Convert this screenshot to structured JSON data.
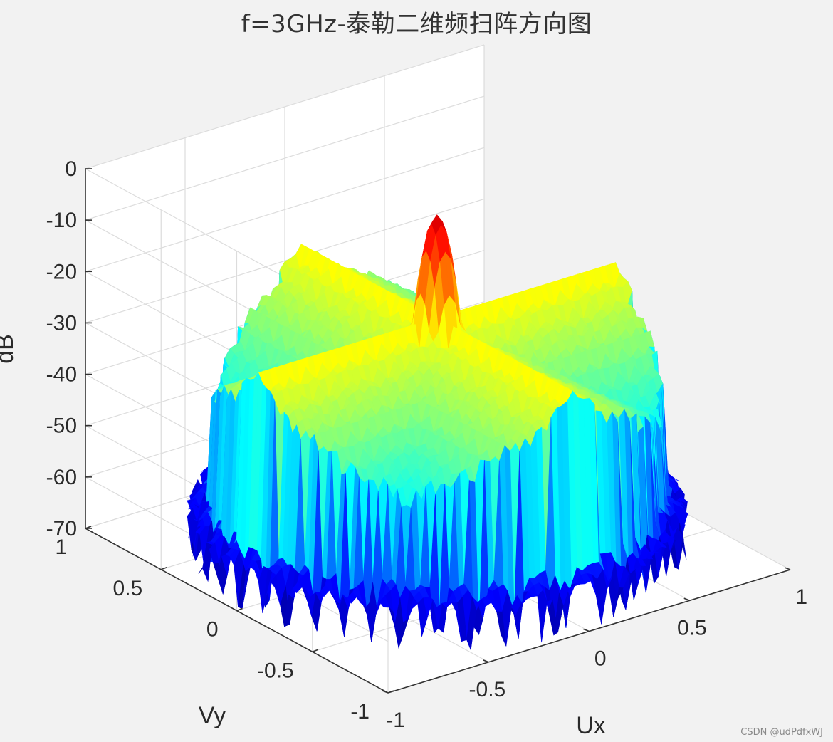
{
  "chart_data": {
    "type": "surface",
    "title": "f=3GHz-泰勒二维频扫阵方向图",
    "xlabel": "Ux",
    "ylabel": "Vy",
    "zlabel": "dB",
    "x_ticks": [
      "-1",
      "-0.5",
      "0",
      "0.5",
      "1"
    ],
    "y_ticks": [
      "-1",
      "-0.5",
      "0",
      "0.5",
      "1"
    ],
    "z_ticks": [
      "0",
      "-10",
      "-20",
      "-30",
      "-40",
      "-50",
      "-60",
      "-70"
    ],
    "xlim": [
      -1,
      1
    ],
    "ylim": [
      -1,
      1
    ],
    "zlim": [
      -70,
      0
    ],
    "grid": true,
    "colormap": "jet",
    "domain": "unit circle Ux^2 + Vy^2 <= 1",
    "main_beam_peak_db": -5,
    "sidelobe_level_db": -25,
    "floor_db": -70,
    "colormap_stops": [
      "#00008f",
      "#0000ff",
      "#00ffff",
      "#ffff00",
      "#ff0000",
      "#800000"
    ]
  },
  "watermark": "CSDN @udPdfxWJ"
}
